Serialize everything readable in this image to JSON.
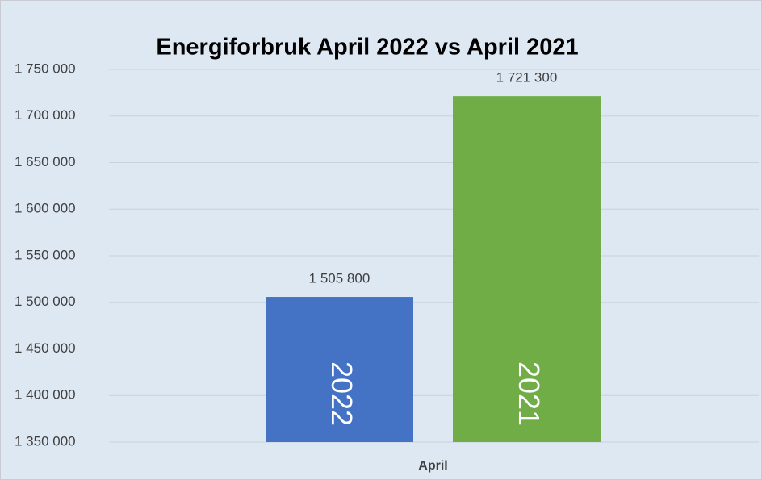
{
  "chart_data": {
    "type": "bar",
    "title": "Energiforbruk April 2022 vs April 2021",
    "categories": [
      "April"
    ],
    "series": [
      {
        "name": "2022",
        "color": "#4472c4",
        "values": [
          1505800
        ],
        "value_labels": [
          "1 505 800"
        ]
      },
      {
        "name": "2021",
        "color": "#70ad47",
        "values": [
          1721300
        ],
        "value_labels": [
          "1 721 300"
        ]
      }
    ],
    "ylim": [
      1350000,
      1750000
    ],
    "yticks": [
      {
        "value": 1350000,
        "label": "1 350 000"
      },
      {
        "value": 1400000,
        "label": "1 400 000"
      },
      {
        "value": 1450000,
        "label": "1 450 000"
      },
      {
        "value": 1500000,
        "label": "1 500 000"
      },
      {
        "value": 1550000,
        "label": "1 550 000"
      },
      {
        "value": 1600000,
        "label": "1 600 000"
      },
      {
        "value": 1650000,
        "label": "1 650 000"
      },
      {
        "value": 1700000,
        "label": "1 700 000"
      },
      {
        "value": 1750000,
        "label": "1 750 000"
      }
    ],
    "grid": true
  }
}
